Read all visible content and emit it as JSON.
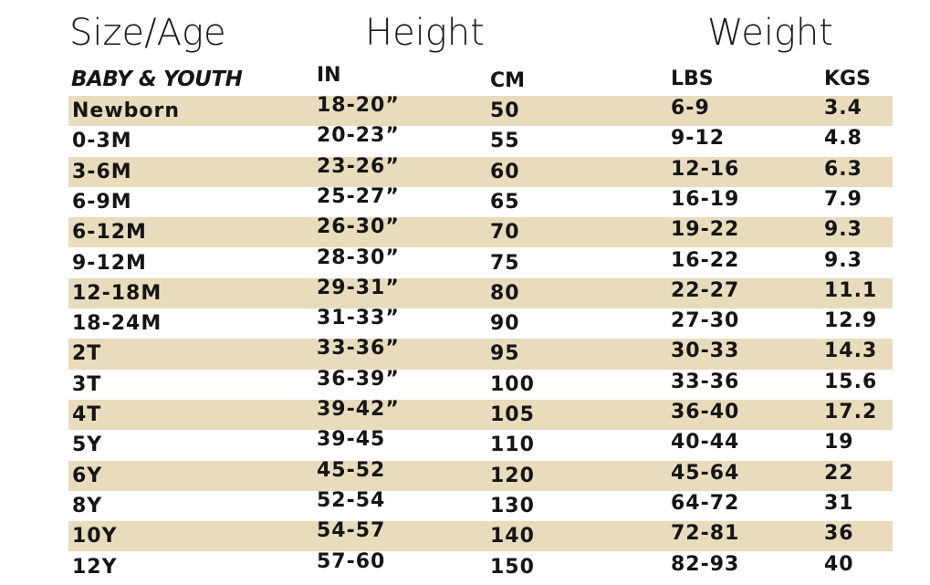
{
  "titles": {
    "size_age": "Size/Age",
    "height": "Height",
    "weight": "Weight"
  },
  "subheaders": {
    "category": "BABY & YOUTH",
    "in": "IN",
    "cm": "CM",
    "lbs": "LBS",
    "kgs": "KGS"
  },
  "colors": {
    "row_shade": "#e8dcbd",
    "text": "#151515"
  },
  "rows": [
    {
      "size": "Newborn",
      "in": "18-20”",
      "cm": "50",
      "lbs": "6-9",
      "kgs": "3.4"
    },
    {
      "size": "0-3M",
      "in": "20-23”",
      "cm": "55",
      "lbs": "9-12",
      "kgs": "4.8"
    },
    {
      "size": "3-6M",
      "in": "23-26”",
      "cm": "60",
      "lbs": "12-16",
      "kgs": "6.3"
    },
    {
      "size": "6-9M",
      "in": "25-27”",
      "cm": "65",
      "lbs": "16-19",
      "kgs": "7.9"
    },
    {
      "size": "6-12M",
      "in": "26-30”",
      "cm": "70",
      "lbs": "19-22",
      "kgs": "9.3"
    },
    {
      "size": "9-12M",
      "in": "28-30”",
      "cm": "75",
      "lbs": "16-22",
      "kgs": "9.3"
    },
    {
      "size": "12-18M",
      "in": "29-31”",
      "cm": "80",
      "lbs": "22-27",
      "kgs": "11.1"
    },
    {
      "size": "18-24M",
      "in": "31-33”",
      "cm": "90",
      "lbs": "27-30",
      "kgs": "12.9"
    },
    {
      "size": "2T",
      "in": "33-36”",
      "cm": "95",
      "lbs": "30-33",
      "kgs": "14.3"
    },
    {
      "size": "3T",
      "in": "36-39”",
      "cm": "100",
      "lbs": "33-36",
      "kgs": "15.6"
    },
    {
      "size": "4T",
      "in": "39-42”",
      "cm": "105",
      "lbs": "36-40",
      "kgs": "17.2"
    },
    {
      "size": "5Y",
      "in": "39-45",
      "cm": "110",
      "lbs": "40-44",
      "kgs": "19"
    },
    {
      "size": "6Y",
      "in": "45-52",
      "cm": "120",
      "lbs": "45-64",
      "kgs": "22"
    },
    {
      "size": "8Y",
      "in": "52-54",
      "cm": "130",
      "lbs": "64-72",
      "kgs": "31"
    },
    {
      "size": "10Y",
      "in": "54-57",
      "cm": "140",
      "lbs": "72-81",
      "kgs": "36"
    },
    {
      "size": "12Y",
      "in": "57-60",
      "cm": "150",
      "lbs": "82-93",
      "kgs": "40"
    }
  ]
}
